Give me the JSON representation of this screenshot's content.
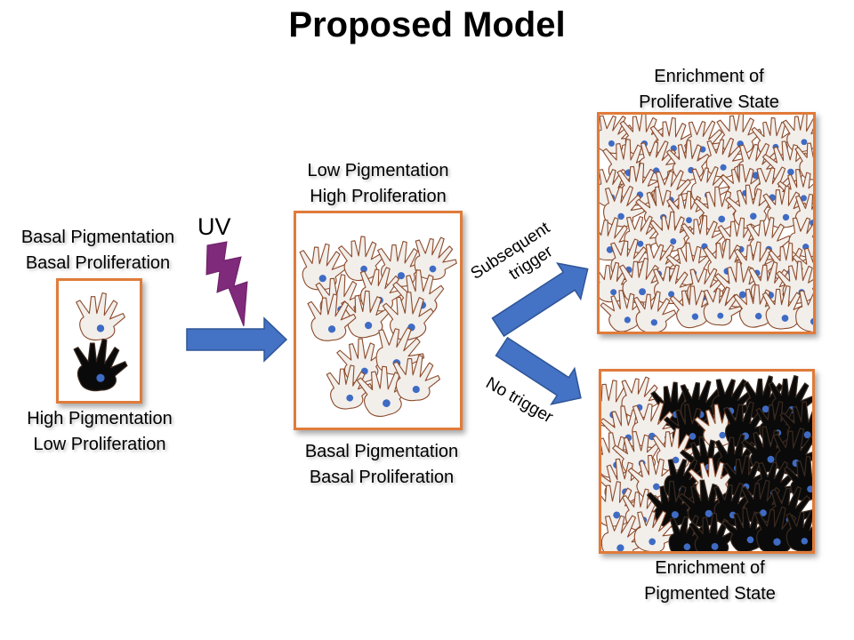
{
  "title": "Proposed Model",
  "uv_label": "UV",
  "left": {
    "top_line1": "Basal Pigmentation",
    "top_line2": "Basal Proliferation",
    "bottom_line1": "High Pigmentation",
    "bottom_line2": "Low Proliferation"
  },
  "middle": {
    "top_line1": "Low Pigmentation",
    "top_line2": "High Proliferation",
    "bottom_line1": "Basal Pigmentation",
    "bottom_line2": "Basal Proliferation"
  },
  "right_top": {
    "line1": "Enrichment of",
    "line2": "Proliferative State"
  },
  "right_bottom": {
    "line1": "Enrichment of",
    "line2": "Pigmented State"
  },
  "arrows": {
    "upper_line1": "Subsequent",
    "upper_line2": "trigger",
    "lower": "No trigger"
  },
  "colors": {
    "box_border": "#E07B39",
    "arrow": "#4472C4",
    "lightning": "#7F2A7A",
    "light_cell_fill": "#F2EEEA",
    "light_cell_outline": "#8B4A2B",
    "dark_cell_fill": "#0A0A0A",
    "nucleus": "#3E6BC4"
  }
}
